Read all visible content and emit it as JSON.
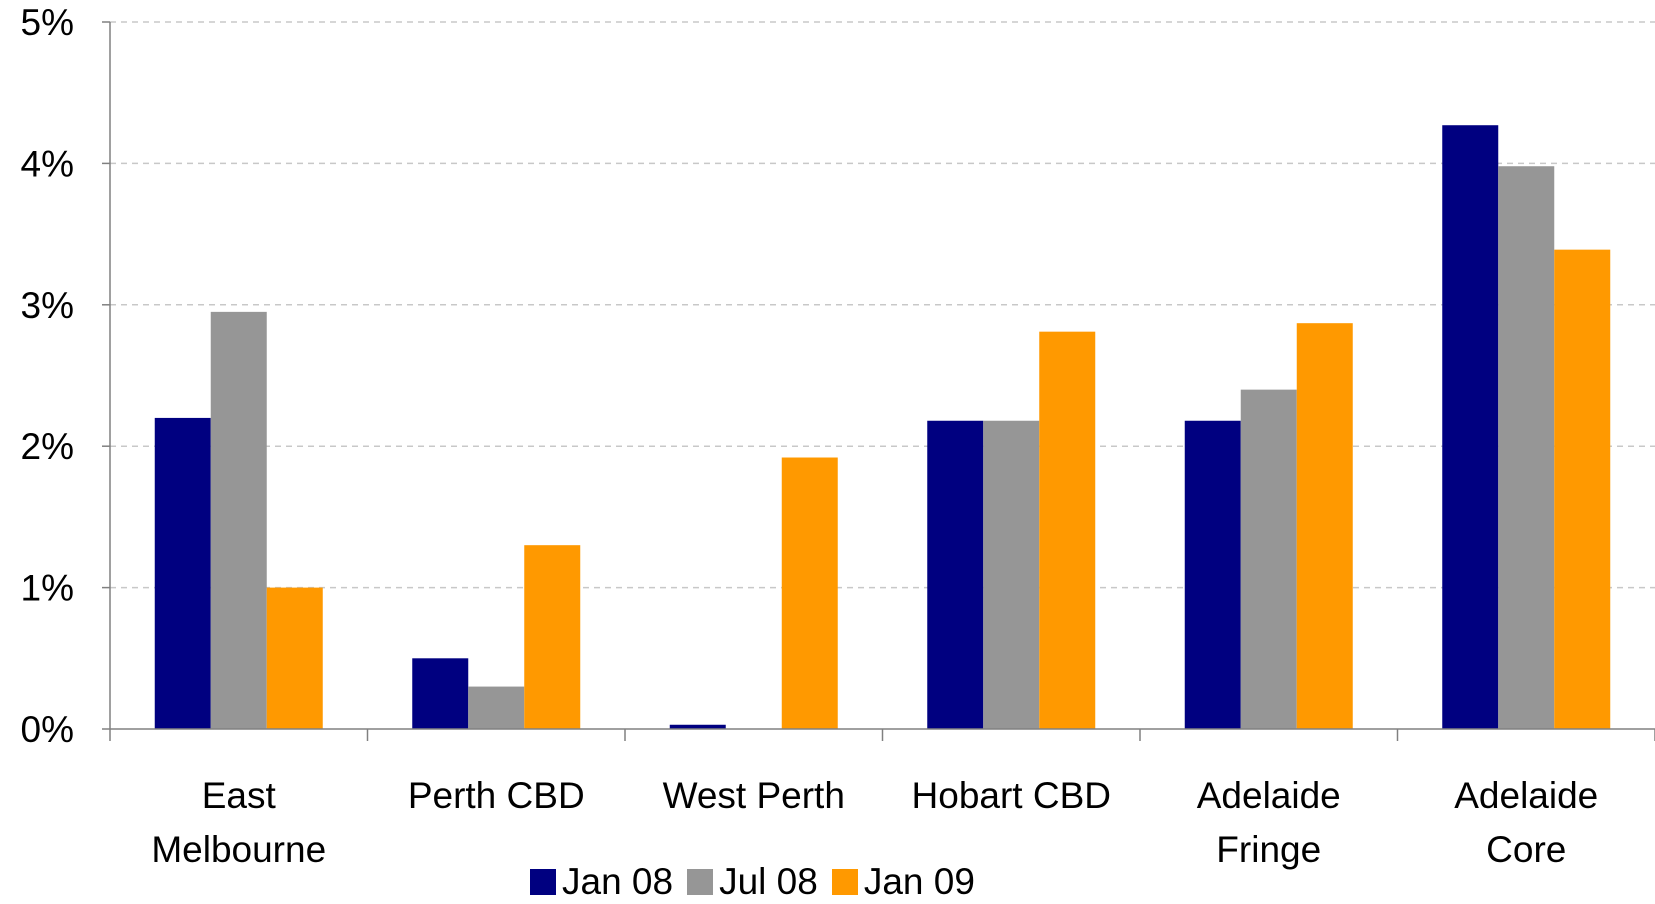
{
  "chart_data": {
    "type": "bar",
    "title": "",
    "xlabel": "",
    "ylabel": "",
    "ylim": [
      0,
      5
    ],
    "y_ticks": [
      "0%",
      "1%",
      "2%",
      "3%",
      "4%",
      "5%"
    ],
    "y_tick_values": [
      0,
      1,
      2,
      3,
      4,
      5
    ],
    "grid": true,
    "legend_position": "bottom",
    "categories": [
      [
        "East",
        "Melbourne"
      ],
      [
        "Perth CBD"
      ],
      [
        "West Perth"
      ],
      [
        "Hobart CBD"
      ],
      [
        "Adelaide",
        "Fringe"
      ],
      [
        "Adelaide",
        "Core"
      ]
    ],
    "series": [
      {
        "name": "Jan 08",
        "color": "#000080",
        "values": [
          2.2,
          0.5,
          0.03,
          2.18,
          2.18,
          4.27
        ]
      },
      {
        "name": "Jul 08",
        "color": "#969696",
        "values": [
          2.95,
          0.3,
          0,
          2.18,
          2.4,
          3.98
        ]
      },
      {
        "name": "Jan 09",
        "color": "#ff9900",
        "values": [
          1.0,
          1.3,
          1.92,
          2.81,
          2.87,
          3.39
        ]
      }
    ]
  }
}
